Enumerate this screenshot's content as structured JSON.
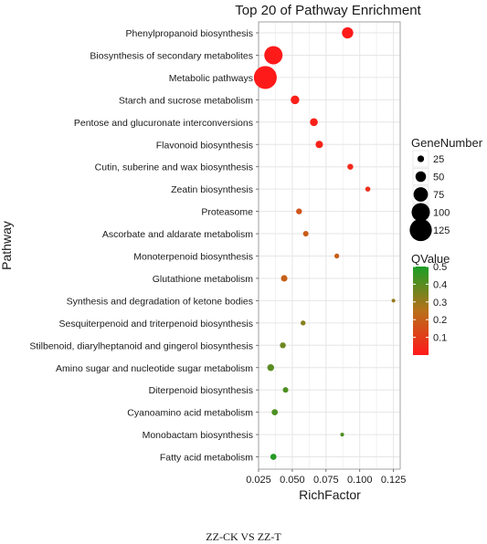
{
  "chart_data": {
    "type": "scatter",
    "title": "Top 20 of Pathway Enrichment",
    "xlabel": "RichFactor",
    "ylabel": "Pathway",
    "xlim": [
      0.025,
      0.13
    ],
    "x_ticks": [
      0.025,
      0.05,
      0.075,
      0.1,
      0.125
    ],
    "x_tick_labels": [
      "0.025",
      "0.050",
      "0.075",
      "0.100",
      "0.125"
    ],
    "grid": true,
    "legend_position": "right",
    "color_scale": {
      "low": "#ff1a1a",
      "mid": "#b8711a",
      "high": "#1a9e26"
    },
    "points": [
      {
        "pathway": "Phenylpropanoid biosynthesis",
        "rich_factor": 0.091,
        "gene_number": 55,
        "qvalue": 0.0
      },
      {
        "pathway": "Biosynthesis of secondary metabolites",
        "rich_factor": 0.036,
        "gene_number": 100,
        "qvalue": 0.0
      },
      {
        "pathway": "Metabolic pathways",
        "rich_factor": 0.03,
        "gene_number": 130,
        "qvalue": 0.0
      },
      {
        "pathway": "Starch and sucrose metabolism",
        "rich_factor": 0.052,
        "gene_number": 38,
        "qvalue": 0.02
      },
      {
        "pathway": "Pentose and glucuronate interconversions",
        "rich_factor": 0.066,
        "gene_number": 33,
        "qvalue": 0.02
      },
      {
        "pathway": "Flavonoid biosynthesis",
        "rich_factor": 0.07,
        "gene_number": 30,
        "qvalue": 0.03
      },
      {
        "pathway": "Cutin, suberine and wax biosynthesis",
        "rich_factor": 0.093,
        "gene_number": 20,
        "qvalue": 0.04
      },
      {
        "pathway": "Zeatin biosynthesis",
        "rich_factor": 0.106,
        "gene_number": 15,
        "qvalue": 0.06
      },
      {
        "pathway": "Proteasome",
        "rich_factor": 0.055,
        "gene_number": 20,
        "qvalue": 0.17
      },
      {
        "pathway": "Ascorbate and aldarate metabolism",
        "rich_factor": 0.06,
        "gene_number": 18,
        "qvalue": 0.19
      },
      {
        "pathway": "Monoterpenoid biosynthesis",
        "rich_factor": 0.083,
        "gene_number": 14,
        "qvalue": 0.2
      },
      {
        "pathway": "Glutathione metabolism",
        "rich_factor": 0.044,
        "gene_number": 24,
        "qvalue": 0.2
      },
      {
        "pathway": "Synthesis and degradation of ketone bodies",
        "rich_factor": 0.125,
        "gene_number": 6,
        "qvalue": 0.3
      },
      {
        "pathway": "Sesquiterpenoid and triterpenoid biosynthesis",
        "rich_factor": 0.058,
        "gene_number": 14,
        "qvalue": 0.33
      },
      {
        "pathway": "Stilbenoid, diarylheptanoid and gingerol biosynthesis",
        "rich_factor": 0.043,
        "gene_number": 20,
        "qvalue": 0.37
      },
      {
        "pathway": "Amino sugar and nucleotide sugar metabolism",
        "rich_factor": 0.034,
        "gene_number": 26,
        "qvalue": 0.4
      },
      {
        "pathway": "Diterpenoid biosynthesis",
        "rich_factor": 0.045,
        "gene_number": 18,
        "qvalue": 0.42
      },
      {
        "pathway": "Cyanoamino acid metabolism",
        "rich_factor": 0.037,
        "gene_number": 22,
        "qvalue": 0.42
      },
      {
        "pathway": "Monobactam biosynthesis",
        "rich_factor": 0.087,
        "gene_number": 7,
        "qvalue": 0.42
      },
      {
        "pathway": "Fatty acid metabolism",
        "rich_factor": 0.036,
        "gene_number": 22,
        "qvalue": 0.48
      }
    ],
    "size_legend": {
      "title": "GeneNumber",
      "values": [
        25,
        50,
        75,
        100,
        125
      ]
    },
    "color_legend": {
      "title": "QValue",
      "ticks": [
        0.1,
        0.2,
        0.3,
        0.4,
        0.5
      ],
      "range": [
        0.0,
        0.5
      ]
    }
  },
  "caption": "ZZ-CK VS ZZ-T"
}
